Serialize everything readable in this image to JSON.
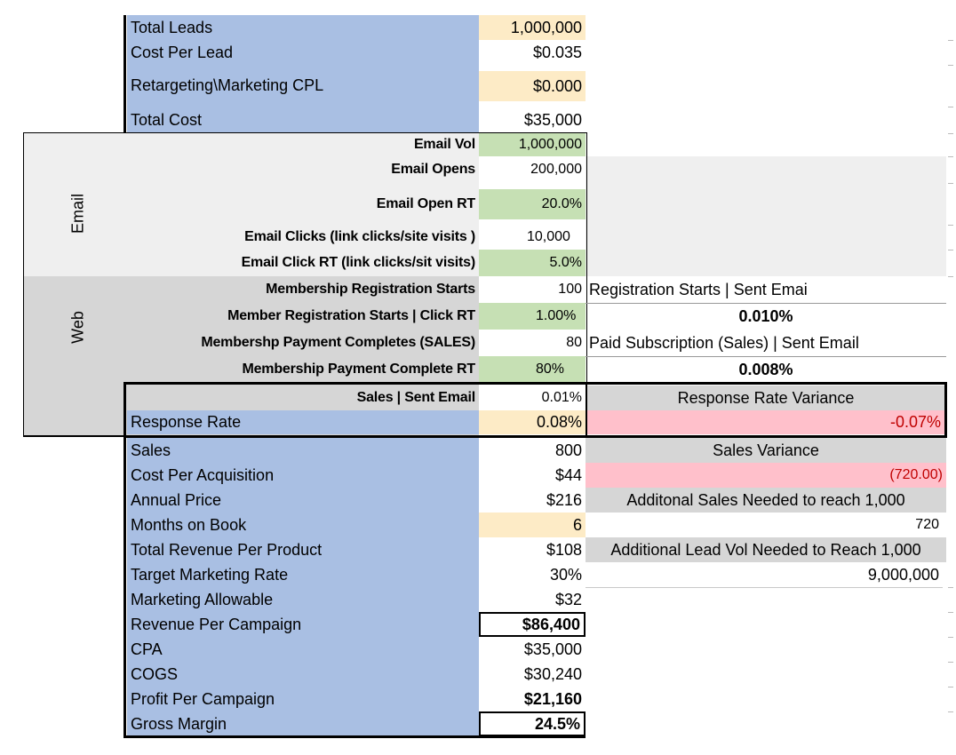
{
  "top": {
    "total_leads_label": "Total Leads",
    "total_leads": "1,000,000",
    "cpl_label": "Cost Per Lead",
    "cpl": "$0.035",
    "retarget_label": "Retargeting\\Marketing CPL",
    "retarget": "$0.000",
    "total_cost_label": "Total Cost",
    "total_cost": "$35,000"
  },
  "email": {
    "section_label": "Email",
    "vol_label": "Email Vol",
    "vol": "1,000,000",
    "opens_label": "Email Opens",
    "opens": "200,000",
    "open_rt_label": "Email Open RT",
    "open_rt": "20.0%",
    "clicks_label": "Email Clicks (link clicks/site visits )",
    "clicks": "10,000",
    "click_rt_label": "Email Click RT (link clicks/sit visits)",
    "click_rt": "5.0%"
  },
  "web": {
    "section_label": "Web",
    "reg_starts_label": "Membership Registration Starts",
    "reg_starts": "100",
    "reg_click_rt_label": "Member Registration Starts | Click RT",
    "reg_click_rt": "1.00%",
    "pay_label": "Membershp Payment Completes (SALES)",
    "pay": "80",
    "pay_rt_label": "Membership Payment Complete RT",
    "pay_rt": "80%",
    "side_reg_label": "Registration Starts | Sent Emai",
    "side_reg_value": "0.010%",
    "side_paid_label": "Paid Subscription (Sales) | Sent Email",
    "side_paid_value": "0.008%"
  },
  "box": {
    "sales_sent_label": "Sales | Sent Email",
    "sales_sent": "0.01%",
    "rr_variance_label": "Response Rate Variance",
    "response_rate_label": "Response Rate",
    "response_rate": "0.08%",
    "rr_variance": "-0.07%"
  },
  "bottom": {
    "sales_label": "Sales",
    "sales": "800",
    "cpa_label": "Cost Per Acquisition",
    "cpa": "$44",
    "annual_label": "Annual Price",
    "annual": "$216",
    "months_label": "Months on Book",
    "months": "6",
    "trp_label": "Total Revenue Per Product",
    "trp": "$108",
    "tmr_label": "Target Marketing Rate",
    "tmr": "30%",
    "allow_label": "Marketing Allowable",
    "allow": "$32",
    "rpc_label": "Revenue Per Campaign",
    "rpc": "$86,400",
    "cpa2_label": "CPA",
    "cpa2": "$35,000",
    "cogs_label": "COGS",
    "cogs": "$30,240",
    "ppc_label": "Profit Per Campaign",
    "ppc": "$21,160",
    "gm_label": "Gross Margin",
    "gm": "24.5%"
  },
  "variance": {
    "sales_variance_label": "Sales Variance",
    "sales_variance": "(720.00)",
    "add_sales_label": "Additonal Sales Needed to reach 1,000",
    "add_sales": "720",
    "add_leads_label": "Additional Lead Vol Needed to Reach 1,000",
    "add_leads": "9,000,000"
  },
  "colors": {
    "label_blue": "#a9bfe3",
    "input_yellow": "#fdebc6",
    "rate_green": "#c6e0b4",
    "section_gray": "#efefef",
    "section_gray_dark": "#d6d6d6",
    "negative_pink": "#ffc0cb",
    "negative_text": "#c00000"
  }
}
